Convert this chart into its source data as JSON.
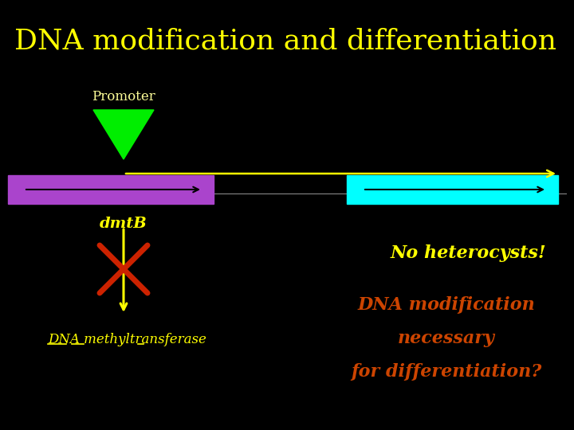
{
  "title": "DNA modification and differentiation",
  "title_color": "#ffff00",
  "title_fontsize": 26,
  "bg_color": "#000000",
  "promoter_label": "Promoter",
  "promoter_label_color": "#ffff99",
  "promoter_label_fontsize": 12,
  "promoter_triangle_color": "#00ee00",
  "yellow_arrow_color": "#ffff00",
  "purple_bar_color": "#aa44cc",
  "cyan_bar_color": "#00ffff",
  "dmtB_label": "dmtB",
  "dmtB_label_color": "#ffff00",
  "dmtB_label_fontsize": 14,
  "cross_color": "#cc2200",
  "vertical_arrow_color": "#ffff00",
  "dna_methyl_label": "DNA methyltransferase",
  "dna_methyl_color": "#ffff00",
  "dna_methyl_fontsize": 12,
  "no_heterocysts_label": "No heterocysts!",
  "no_heterocysts_color": "#ffff00",
  "no_heterocysts_fontsize": 16,
  "dna_mod_line1": "DNA modification",
  "dna_mod_line2": "necessary",
  "dna_mod_line3": "for differentiation?",
  "dna_mod_color": "#cc4400",
  "dna_mod_fontsize": 16,
  "inner_arrow_color": "#000000",
  "line_color": "#ffffff"
}
